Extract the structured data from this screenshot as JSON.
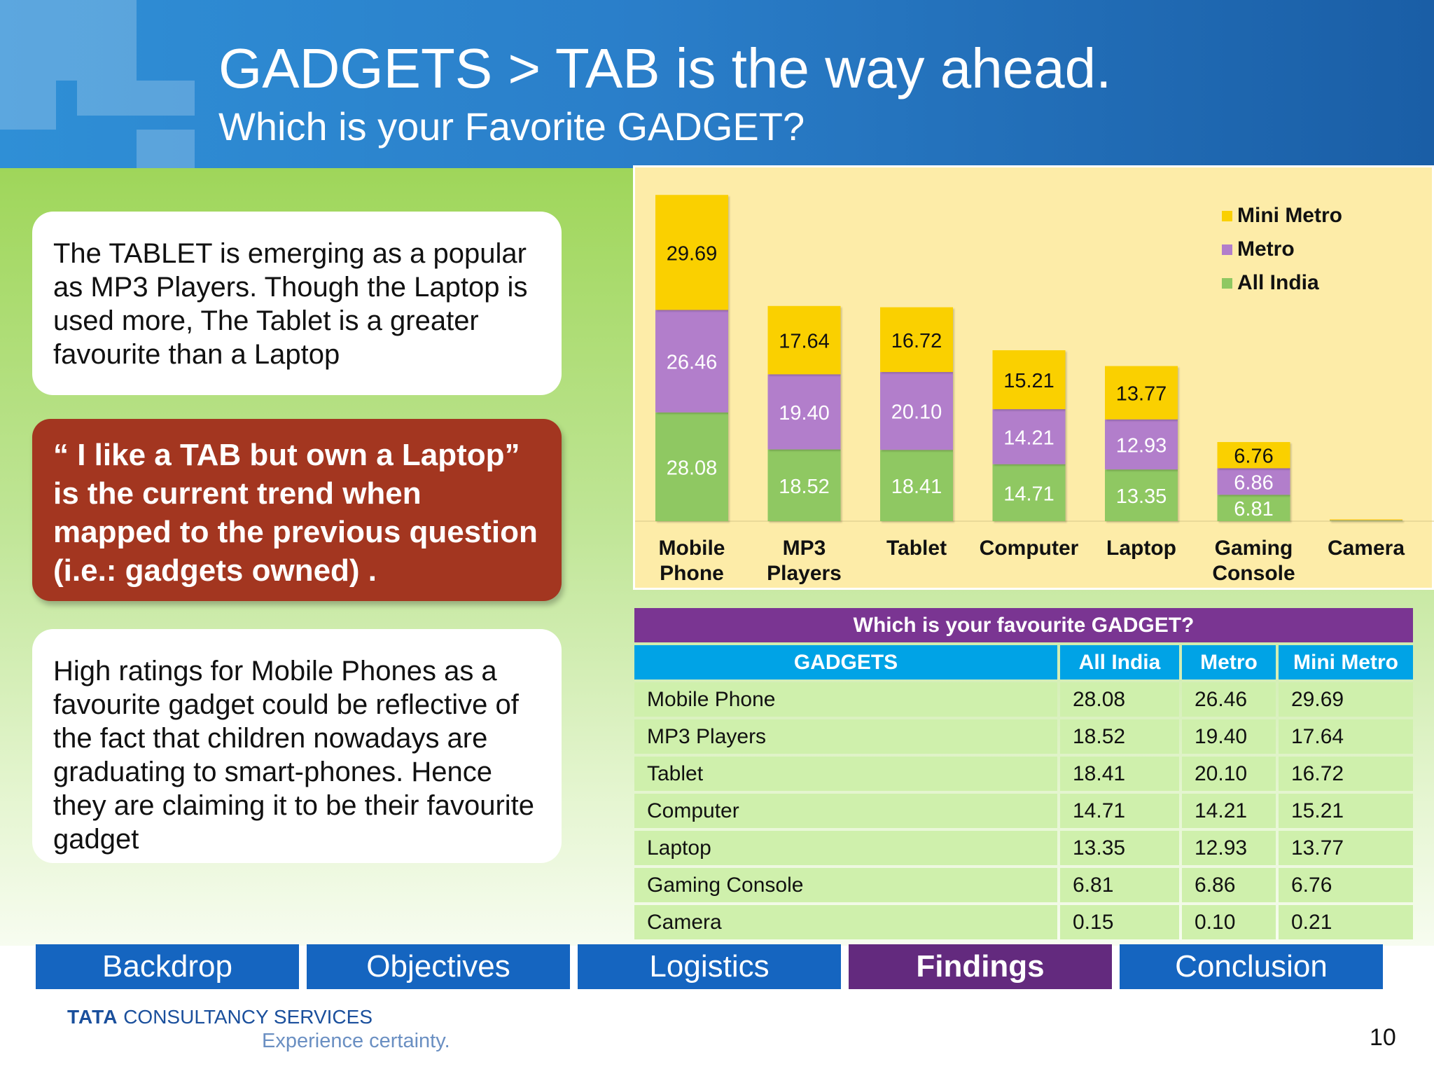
{
  "slide": {
    "title": "GADGETS > TAB is the way ahead.",
    "subtitle": "Which is your Favorite GADGET?",
    "page_number": "10"
  },
  "textboxes": {
    "box1": "The TABLET is emerging as a popular as MP3 Players. Though the Laptop is used more, The Tablet is a greater favourite than a Laptop",
    "quote": "“ I like a TAB but own a Laptop” is the current trend when mapped to the previous question  (i.e.: gadgets owned) .",
    "box3": "High ratings for Mobile Phones as a favourite gadget could be reflective of the fact that children nowadays are graduating to smart-phones. Hence they are claiming it to be their favourite gadget"
  },
  "chart_data": {
    "type": "bar",
    "stacked": true,
    "categories": [
      "Mobile Phone",
      "MP3 Players",
      "Tablet",
      "Computer",
      "Laptop",
      "Gaming Console",
      "Camera"
    ],
    "category_lines": [
      [
        "Mobile",
        "Phone"
      ],
      [
        "MP3",
        "Players"
      ],
      [
        "Tablet"
      ],
      [
        "Computer"
      ],
      [
        "Laptop"
      ],
      [
        "Gaming",
        "Console"
      ],
      [
        "Camera"
      ]
    ],
    "series": [
      {
        "name": "All India",
        "color": "#8fc862",
        "label_color": "#ffffff",
        "values": [
          28.08,
          18.52,
          18.41,
          14.71,
          13.35,
          6.81,
          0.15
        ]
      },
      {
        "name": "Metro",
        "color": "#b27ecb",
        "label_color": "#ffffff",
        "values": [
          26.46,
          19.4,
          20.1,
          14.21,
          12.93,
          6.86,
          0.1
        ]
      },
      {
        "name": "Mini Metro",
        "color": "#fad000",
        "label_color": "#111111",
        "values": [
          29.69,
          17.64,
          16.72,
          15.21,
          13.77,
          6.76,
          0.21
        ]
      }
    ],
    "value_labels": [
      [
        "28.08",
        "18.52",
        "18.41",
        "14.71",
        "13.35",
        "6.81",
        ""
      ],
      [
        "26.46",
        "19.40",
        "20.10",
        "14.21",
        "12.93",
        "6.86",
        ""
      ],
      [
        "29.69",
        "17.64",
        "16.72",
        "15.21",
        "13.77",
        "6.76",
        ""
      ]
    ],
    "legend_order": [
      "Mini Metro",
      "Metro",
      "All India"
    ],
    "legend_position": "top-right",
    "ylim": [
      0,
      85
    ],
    "grid": false
  },
  "table": {
    "title": "Which is your favourite GADGET?",
    "headers": [
      "GADGETS",
      "All India",
      "Metro",
      "Mini Metro"
    ],
    "rows": [
      [
        "Mobile Phone",
        "28.08",
        "26.46",
        "29.69"
      ],
      [
        "MP3 Players",
        "18.52",
        "19.40",
        "17.64"
      ],
      [
        "Tablet",
        "18.41",
        "20.10",
        "16.72"
      ],
      [
        "Computer",
        "14.71",
        "14.21",
        "15.21"
      ],
      [
        "Laptop",
        "13.35",
        "12.93",
        "13.77"
      ],
      [
        "Gaming Console",
        "6.81",
        "6.86",
        "6.76"
      ],
      [
        "Camera",
        "0.15",
        "0.10",
        "0.21"
      ]
    ]
  },
  "nav": [
    {
      "label": "Backdrop",
      "active": false
    },
    {
      "label": "Objectives",
      "active": false
    },
    {
      "label": "Logistics",
      "active": false
    },
    {
      "label": "Findings",
      "active": true
    },
    {
      "label": "Conclusion",
      "active": false
    }
  ],
  "logo": {
    "brand": "TATA",
    "company": "CONSULTANCY SERVICES",
    "tagline": "Experience certainty."
  }
}
